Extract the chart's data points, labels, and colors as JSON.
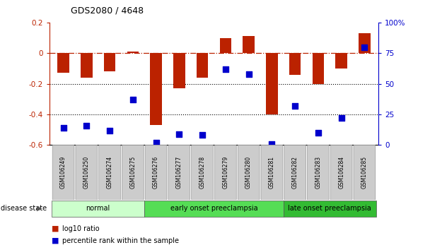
{
  "title": "GDS2080 / 4648",
  "samples": [
    "GSM106249",
    "GSM106250",
    "GSM106274",
    "GSM106275",
    "GSM106276",
    "GSM106277",
    "GSM106278",
    "GSM106279",
    "GSM106280",
    "GSM106281",
    "GSM106282",
    "GSM106283",
    "GSM106284",
    "GSM106285"
  ],
  "log10_ratio": [
    -0.13,
    -0.16,
    -0.12,
    0.01,
    -0.47,
    -0.23,
    -0.16,
    0.1,
    0.11,
    -0.4,
    -0.14,
    -0.2,
    -0.1,
    0.13
  ],
  "percentile_rank": [
    14,
    16,
    12,
    37,
    2,
    9,
    8,
    62,
    58,
    1,
    32,
    10,
    22,
    80
  ],
  "bar_color": "#bb2200",
  "dot_color": "#0000cc",
  "ylim_left": [
    -0.6,
    0.2
  ],
  "ylim_right": [
    0,
    100
  ],
  "yticks_left": [
    -0.6,
    -0.4,
    -0.2,
    0.0,
    0.2
  ],
  "yticks_right": [
    0,
    25,
    50,
    75,
    100
  ],
  "ytick_labels_right": [
    "0",
    "25",
    "50",
    "75",
    "100%"
  ],
  "dotted_lines": [
    -0.2,
    -0.4
  ],
  "disease_groups": [
    {
      "label": "normal",
      "start": 0,
      "end": 3,
      "color": "#ccffcc"
    },
    {
      "label": "early onset preeclampsia",
      "start": 4,
      "end": 9,
      "color": "#55dd55"
    },
    {
      "label": "late onset preeclampsia",
      "start": 10,
      "end": 13,
      "color": "#33bb33"
    }
  ],
  "legend_items": [
    {
      "label": "log10 ratio",
      "color": "#bb2200"
    },
    {
      "label": "percentile rank within the sample",
      "color": "#0000cc"
    }
  ],
  "disease_state_label": "disease state",
  "background_color": "#ffffff",
  "bar_width": 0.5,
  "dot_size": 30
}
